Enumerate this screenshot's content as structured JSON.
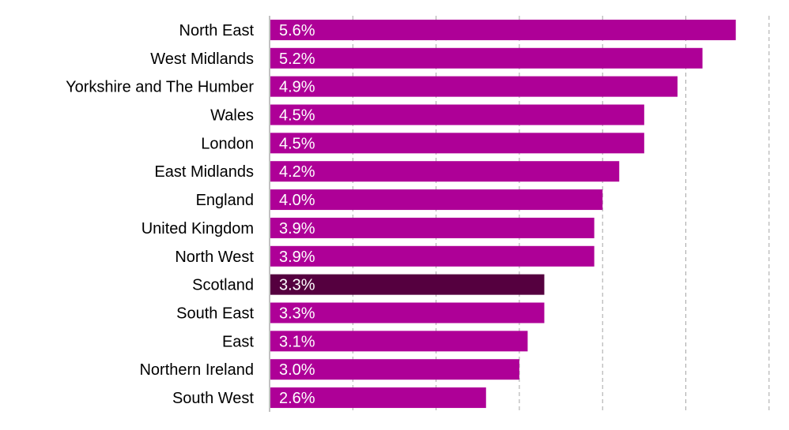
{
  "chart_data": {
    "type": "bar",
    "orientation": "horizontal",
    "categories": [
      "North East",
      "West Midlands",
      "Yorkshire and The Humber",
      "Wales",
      "London",
      "East Midlands",
      "England",
      "United Kingdom",
      "North West",
      "Scotland",
      "South East",
      "East",
      "Northern Ireland",
      "South West"
    ],
    "values": [
      5.6,
      5.2,
      4.9,
      4.5,
      4.5,
      4.2,
      4.0,
      3.9,
      3.9,
      3.3,
      3.3,
      3.1,
      3.0,
      2.6
    ],
    "value_labels": [
      "5.6%",
      "5.2%",
      "4.9%",
      "4.5%",
      "4.5%",
      "4.2%",
      "4.0%",
      "3.9%",
      "3.9%",
      "3.3%",
      "3.3%",
      "3.1%",
      "3.0%",
      "2.6%"
    ],
    "highlight": "Scotland",
    "colors": {
      "bar": "#ae0097",
      "highlight": "#55003f"
    },
    "xlim": [
      0,
      6
    ],
    "grid": true,
    "title": "",
    "xlabel": "",
    "ylabel": ""
  }
}
